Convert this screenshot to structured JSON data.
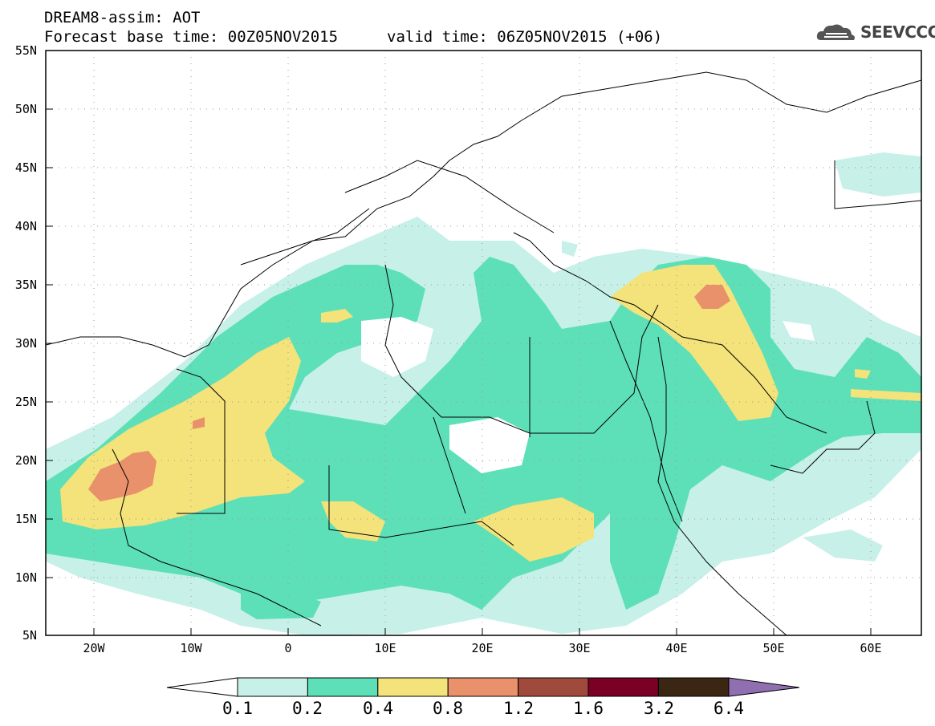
{
  "title": {
    "line1": "DREAM8-assim: AOT",
    "line2_base": "Forecast base time: 00Z05NOV2015",
    "line2_valid": "valid time: 06Z05NOV2015 (+06)"
  },
  "logo": {
    "text": "SEEVCCC",
    "icon": "cloud-logo-icon"
  },
  "axes": {
    "lat_labels": [
      "55N",
      "50N",
      "45N",
      "40N",
      "35N",
      "30N",
      "25N",
      "20N",
      "15N",
      "10N",
      "5N"
    ],
    "lon_labels": [
      "20W",
      "10W",
      "0",
      "10E",
      "20E",
      "30E",
      "40E",
      "50E",
      "60E"
    ],
    "lat_range": [
      5,
      55
    ],
    "lon_range": [
      -25,
      65
    ],
    "grid": "dotted"
  },
  "colorbar": {
    "levels": [
      "0.1",
      "0.2",
      "0.4",
      "0.8",
      "1.2",
      "1.6",
      "3.2",
      "6.4"
    ],
    "colors": [
      "#c7f0e9",
      "#5de0b8",
      "#f4e27a",
      "#e8916b",
      "#a04a3d",
      "#7a0026",
      "#3b2614",
      "#8f6fb0"
    ],
    "under_color": "#ffffff",
    "over_color": "#8f6fb0"
  },
  "field_colors": {
    "c1": "#c7f0e9",
    "c2": "#5de0b8",
    "c3": "#f4e27a",
    "c4": "#e8916b",
    "line": "#000000"
  }
}
